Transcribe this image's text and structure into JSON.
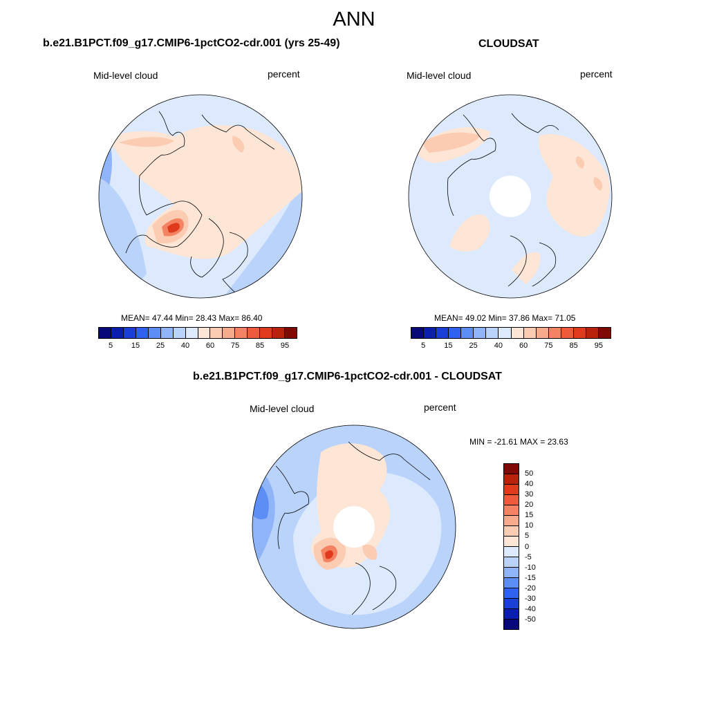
{
  "figure": {
    "title": "ANN"
  },
  "panels": [
    {
      "title": "b.e21.B1PCT.f09_g17.CMIP6-1pctCO2-cdr.001 (yrs 25-49)",
      "left_label": "Mid-level cloud",
      "right_label": "percent",
      "stats": "MEAN=  47.44  Min=  28.43  Max=  86.40"
    },
    {
      "title": "CLOUDSAT",
      "left_label": "Mid-level cloud",
      "right_label": "percent",
      "stats": "MEAN=  49.02  Min=  37.86  Max=  71.05"
    },
    {
      "title": "b.e21.B1PCT.f09_g17.CMIP6-1pctCO2-cdr.001 - CLOUDSAT",
      "left_label": "Mid-level cloud",
      "right_label": "percent",
      "stats": "MIN = -21.61 MAX =  23.63"
    }
  ],
  "colorbar_abs": {
    "ticks": [
      "5",
      "15",
      "25",
      "40",
      "60",
      "75",
      "85",
      "95"
    ],
    "colors": [
      "#08087a",
      "#0a1fae",
      "#1a3fd8",
      "#2f62f0",
      "#5d8ef5",
      "#8fb4f8",
      "#bad3fb",
      "#dde9fd",
      "#fde6d6",
      "#fbcbb2",
      "#f8ab8c",
      "#f48363",
      "#ef5a3c",
      "#e03a1c",
      "#b9230c",
      "#7f0a04"
    ]
  },
  "colorbar_diff": {
    "ticks": [
      "50",
      "40",
      "30",
      "20",
      "15",
      "10",
      "5",
      "0",
      "-5",
      "-10",
      "-15",
      "-20",
      "-30",
      "-40",
      "-50"
    ],
    "colors": [
      "#7f0a04",
      "#b9230c",
      "#e03a1c",
      "#ef5a3c",
      "#f48363",
      "#f8ab8c",
      "#fbcbb2",
      "#fde6d6",
      "#dde9fd",
      "#bad3fb",
      "#8fb4f8",
      "#5d8ef5",
      "#2f62f0",
      "#1a3fd8",
      "#0a1fae",
      "#08087a"
    ]
  },
  "colors": {
    "blue_light": "#dde9fd",
    "blue_mid": "#bad3fb",
    "blue_deep": "#8fb4f8",
    "blue_dark": "#5d8ef5",
    "orange_light": "#fde6d6",
    "orange_mid": "#fbcbb2",
    "orange_deep": "#f48363",
    "red": "#e03a1c",
    "coast": "#000000"
  }
}
